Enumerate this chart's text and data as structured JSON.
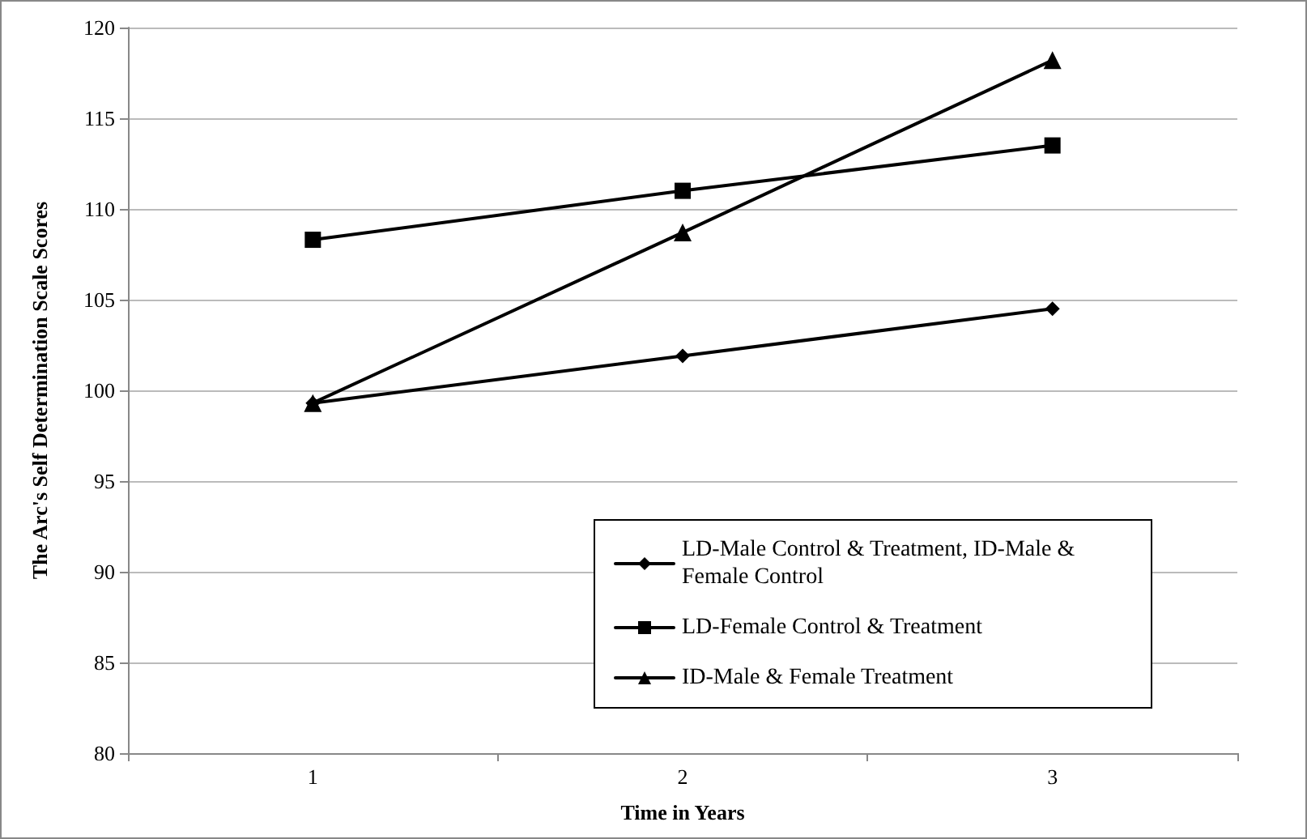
{
  "chart_data": {
    "type": "line",
    "xlabel": "Time in Years",
    "ylabel": "The Arc's Self Determination Scale Scores",
    "categories": [
      "1",
      "2",
      "3"
    ],
    "series": [
      {
        "name": "LD-Male Control & Treatment, ID-Male & Female Control",
        "color": "#000000",
        "marker": "diamond",
        "values": [
          99.3,
          101.9,
          104.5
        ]
      },
      {
        "name": "LD-Female Control & Treatment",
        "color": "#000000",
        "marker": "square",
        "values": [
          108.3,
          111.0,
          113.5
        ]
      },
      {
        "name": "ID-Male & Female Treatment",
        "color": "#000000",
        "marker": "triangle",
        "values": [
          99.3,
          108.7,
          118.2
        ]
      }
    ],
    "ylim": [
      80,
      120
    ],
    "yticks": [
      80,
      85,
      90,
      95,
      100,
      105,
      110,
      115,
      120
    ],
    "grid": "y",
    "legend": "bottom right",
    "line_style": "solid"
  }
}
